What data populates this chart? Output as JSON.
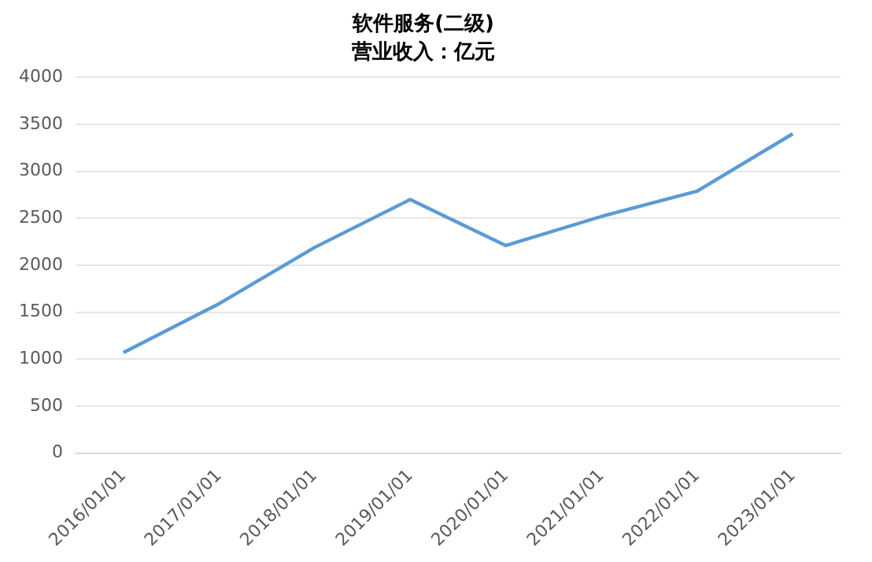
{
  "chart_data": {
    "type": "line",
    "title": "软件服务(二级)",
    "subtitle": "营业收入：亿元",
    "categories": [
      "2016/01/01",
      "2017/01/01",
      "2018/01/01",
      "2019/01/01",
      "2020/01/01",
      "2021/01/01",
      "2022/01/01",
      "2023/01/01"
    ],
    "series": [
      {
        "color": "#5b9bd5",
        "values": [
          1070,
          1590,
          2190,
          2700,
          2210,
          2520,
          2790,
          3400
        ]
      }
    ],
    "ylim": [
      0,
      4000
    ],
    "yticks": [
      0,
      500,
      1000,
      1500,
      2000,
      2500,
      3000,
      3500,
      4000
    ],
    "grid": "y",
    "legend": false,
    "marker": "none",
    "line_style": "solid"
  }
}
